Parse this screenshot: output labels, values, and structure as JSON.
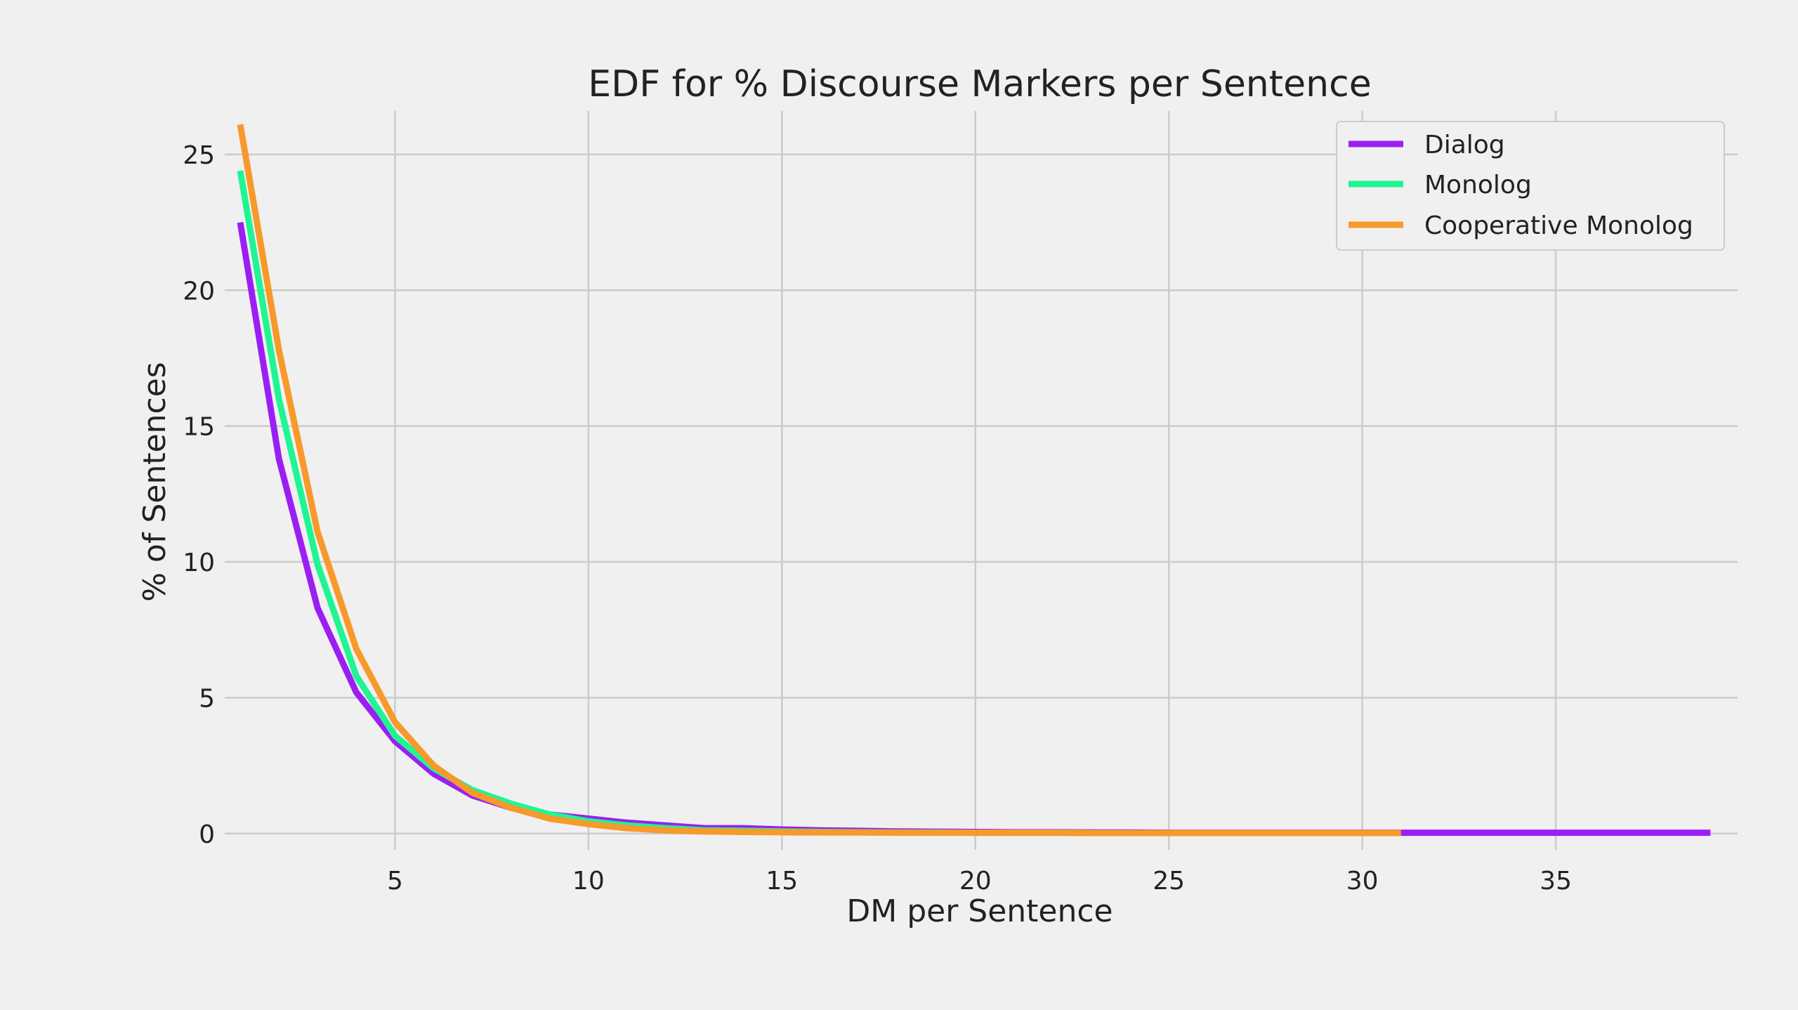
{
  "chart_data": {
    "type": "line",
    "title": "EDF for % Discourse Markers per Sentence",
    "xlabel": "DM per Sentence",
    "ylabel": "% of Sentences",
    "xlim": [
      0.6,
      39.7
    ],
    "ylim": [
      -0.6,
      26.6
    ],
    "xticks": [
      5,
      10,
      15,
      20,
      25,
      30,
      35
    ],
    "yticks": [
      0,
      5,
      10,
      15,
      20,
      25
    ],
    "grid": true,
    "legend_position": "top-right",
    "series": [
      {
        "name": "Dialog",
        "color": "#9b1ff2",
        "x": [
          1,
          2,
          3,
          4,
          5,
          6,
          7,
          8,
          9,
          10,
          11,
          12,
          13,
          14,
          15,
          16,
          17,
          18,
          19,
          20,
          21,
          22,
          23,
          24,
          25,
          26,
          27,
          28,
          29,
          30,
          31,
          32,
          33,
          34,
          35,
          36,
          37,
          38,
          39
        ],
        "y": [
          22.5,
          13.8,
          8.3,
          5.2,
          3.4,
          2.2,
          1.4,
          0.95,
          0.7,
          0.55,
          0.4,
          0.3,
          0.2,
          0.2,
          0.15,
          0.12,
          0.1,
          0.08,
          0.07,
          0.06,
          0.05,
          0.05,
          0.04,
          0.04,
          0.03,
          0.03,
          0.03,
          0.03,
          0.03,
          0.03,
          0.03,
          0.03,
          0.03,
          0.03,
          0.03,
          0.03,
          0.03,
          0.03,
          0.03
        ]
      },
      {
        "name": "Monolog",
        "color": "#20f593",
        "x": [
          1,
          2,
          3,
          4,
          5,
          6,
          7,
          8,
          9,
          10,
          11,
          12,
          13,
          14,
          15,
          16,
          17,
          18,
          19,
          20,
          21,
          22,
          23,
          24,
          25,
          26,
          27,
          28,
          29,
          30,
          31
        ],
        "y": [
          24.4,
          16.0,
          9.9,
          5.8,
          3.6,
          2.4,
          1.6,
          1.1,
          0.7,
          0.45,
          0.3,
          0.2,
          0.12,
          0.1,
          0.08,
          0.06,
          0.05,
          0.04,
          0.04,
          0.03,
          0.03,
          0.03,
          0.02,
          0.02,
          0.02,
          0.02,
          0.02,
          0.02,
          0.02,
          0.02,
          0.02
        ]
      },
      {
        "name": "Cooperative Monolog",
        "color": "#f7992b",
        "x": [
          1,
          2,
          3,
          4,
          5,
          6,
          7,
          8,
          9,
          10,
          11,
          12,
          13,
          14,
          15,
          16,
          17,
          18,
          19,
          20,
          21,
          22,
          23,
          24,
          25,
          26,
          27,
          28,
          29,
          30,
          31
        ],
        "y": [
          26.1,
          17.8,
          11.1,
          6.8,
          4.1,
          2.5,
          1.5,
          0.95,
          0.55,
          0.35,
          0.2,
          0.12,
          0.08,
          0.06,
          0.05,
          0.04,
          0.04,
          0.03,
          0.03,
          0.03,
          0.03,
          0.03,
          0.02,
          0.02,
          0.02,
          0.02,
          0.02,
          0.02,
          0.02,
          0.02,
          0.02
        ]
      }
    ]
  }
}
